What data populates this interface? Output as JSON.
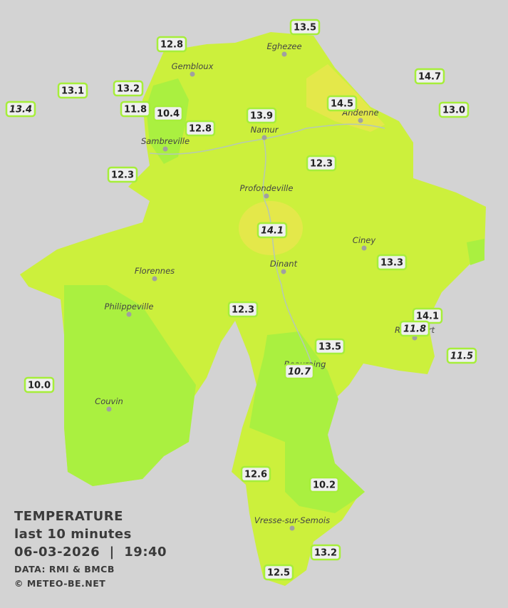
{
  "cities": [
    "Eghezee",
    "Gembloux",
    "Andenne",
    "Namur",
    "Sambreville",
    "Profondeville",
    "Ciney",
    "Florennes",
    "Dinant",
    "Philippeville",
    "Beauraing",
    "Rochefort",
    "Couvin",
    "Vresse-sur-Semois"
  ],
  "stations": [
    "13.5",
    "12.8",
    "14.7",
    "13.1",
    "13.2",
    "13.4",
    "11.8",
    "10.4",
    "13.9",
    "14.5",
    "13.0",
    "12.8",
    "12.3",
    "12.3",
    "14.1",
    "13.3",
    "12.3",
    "14.1",
    "11.8",
    "13.5",
    "10.7",
    "11.5",
    "10.0",
    "12.6",
    "10.2",
    "13.2",
    "12.5"
  ],
  "legend": {
    "title": "TEMPERATURE",
    "subtitle": "last 10 minutes",
    "datetime": "06-03-2026  |  19:40",
    "data_source": "DATA: RMI & BMCB",
    "credit": "© METEO-BE.NET"
  }
}
